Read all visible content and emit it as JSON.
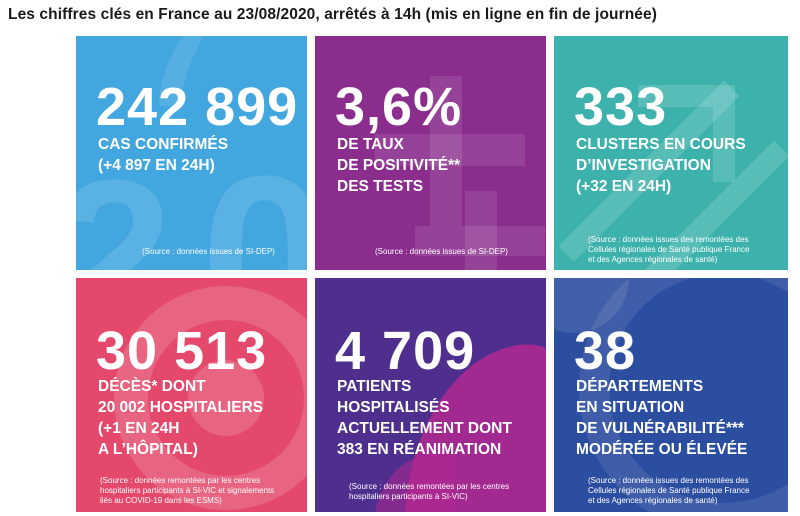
{
  "heading": "Les chiffres clés en France au 23/08/2020, arrêtés à 14h (mis en ligne en fin de journée)",
  "colors": {
    "tile_cases": "#42a6df",
    "tile_positivity": "#8a2d8d",
    "tile_clusters": "#3db2ac",
    "tile_deaths": "#e4486b",
    "tile_hospital": "#4f2f8e",
    "tile_departments": "#2c4ea0"
  },
  "tiles": {
    "cases": {
      "value": "242 899",
      "lines": [
        "CAS CONFIRMÉS",
        "(+4 897 EN 24H)"
      ],
      "source": [
        "(Source : données issues de SI-DEP)"
      ]
    },
    "positivity": {
      "value": "3,6%",
      "lines": [
        "DE TAUX",
        "DE POSITIVITÉ**",
        "DES TESTS"
      ],
      "source": [
        "(Source : données issues de SI-DEP)"
      ]
    },
    "clusters": {
      "value": "333",
      "lines": [
        "CLUSTERS EN COURS",
        "D’INVESTIGATION",
        "(+32 EN 24H)"
      ],
      "source": [
        "(Source : données issues des remontées des",
        "Cellules régionales de Santé publique France",
        "et des Agences régionales de santé)"
      ]
    },
    "deaths": {
      "value": "30 513",
      "lines": [
        "DÉCÈS* DONT",
        "20 002 HOSPITALIERS",
        "(+1 EN 24H",
        "A L’HÔPITAL)"
      ],
      "source": [
        "(Source : données remontées par les centres",
        "hospitaliers participants à SI-VIC et signalements",
        "liés au COVID-19 dans les ESMS)"
      ]
    },
    "hospital": {
      "value": "4 709",
      "lines": [
        "PATIENTS",
        "HOSPITALISÉS",
        "ACTUELLEMENT DONT",
        "383 EN RÉANIMATION"
      ],
      "source": [
        "(Source : données remontées par les centres",
        "hospitaliers participants à SI-VIC)"
      ]
    },
    "departments": {
      "value": "38",
      "lines": [
        "DÉPARTEMENTS",
        "EN SITUATION",
        "DE VULNÉRABILITÉ***",
        "MODÉRÉE OU ÉLEVÉE"
      ],
      "source": [
        "(Source : données issues des remontées des",
        "Cellules régionales de Santé publique France",
        "et des Agences régionales de santé)"
      ]
    }
  }
}
